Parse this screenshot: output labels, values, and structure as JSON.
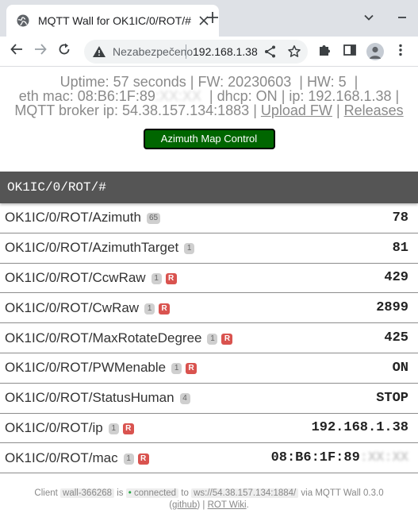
{
  "browser": {
    "tab_title": "MQTT Wall for OK1IC/0/ROT/#",
    "insecure_label": "Nezabezpečeno",
    "url": "192.168.1.38",
    "icons": {
      "globe": "globe-icon",
      "close": "close-icon",
      "new_tab": "plus-icon",
      "tab_list": "chevron-down-icon",
      "minimize": "minimize-icon",
      "back": "arrow-left-icon",
      "forward": "arrow-right-icon",
      "reload": "reload-icon",
      "warning": "warning-triangle-icon",
      "share": "share-icon",
      "star": "star-icon",
      "extensions": "puzzle-icon",
      "side_panel": "side-panel-icon",
      "profile": "avatar-icon",
      "menu": "kebab-menu-icon"
    }
  },
  "status": {
    "uptime": "Uptime: 57 seconds",
    "fw": "FW: 20230603",
    "hw": "HW: 5",
    "eth_mac_label": "eth mac: 08:B6:1F:89",
    "eth_mac_hidden": ":XX:XX",
    "dhcp": "dhcp: ON",
    "ip": "ip: 192.168.1.38",
    "broker": "MQTT broker ip: 54.38.157.134:1883",
    "upload_fw_link": "Upload FW",
    "releases_link": "Releases",
    "separator": "|"
  },
  "azimuth_button": "Azimuth Map Control",
  "topic_header": "OK1IC/0/ROT/#",
  "rows": [
    {
      "topic": "OK1IC/0/ROT/Azimuth",
      "count": "65",
      "retained": false,
      "value": "78"
    },
    {
      "topic": "OK1IC/0/ROT/AzimuthTarget",
      "count": "1",
      "retained": false,
      "value": "81"
    },
    {
      "topic": "OK1IC/0/ROT/CcwRaw",
      "count": "1",
      "retained": true,
      "value": "429"
    },
    {
      "topic": "OK1IC/0/ROT/CwRaw",
      "count": "1",
      "retained": true,
      "value": "2899"
    },
    {
      "topic": "OK1IC/0/ROT/MaxRotateDegree",
      "count": "1",
      "retained": true,
      "value": "425"
    },
    {
      "topic": "OK1IC/0/ROT/PWMenable",
      "count": "1",
      "retained": true,
      "value": "ON"
    },
    {
      "topic": "OK1IC/0/ROT/StatusHuman",
      "count": "4",
      "retained": false,
      "value": "STOP"
    },
    {
      "topic": "OK1IC/0/ROT/ip",
      "count": "1",
      "retained": true,
      "value": "192.168.1.38"
    },
    {
      "topic": "OK1IC/0/ROT/mac",
      "count": "1",
      "retained": true,
      "value": "08:B6:1F:89",
      "value_hidden": ":XX:XX"
    }
  ],
  "retained_label": "R",
  "footer": {
    "client_label": "Client",
    "client_id": "wall-366268",
    "is": "is",
    "state": "connected",
    "state_dot": "•",
    "to": "to",
    "ws_url": "ws://54.38.157.134:1884/",
    "via": "via MQTT Wall 0.3.0",
    "github_link": "github",
    "wiki_link": "ROT Wiki"
  },
  "colors": {
    "header_bg": "#555555",
    "button_bg": "#006600",
    "retained_badge": "#d9534f",
    "connected_dot": "#28a745"
  }
}
